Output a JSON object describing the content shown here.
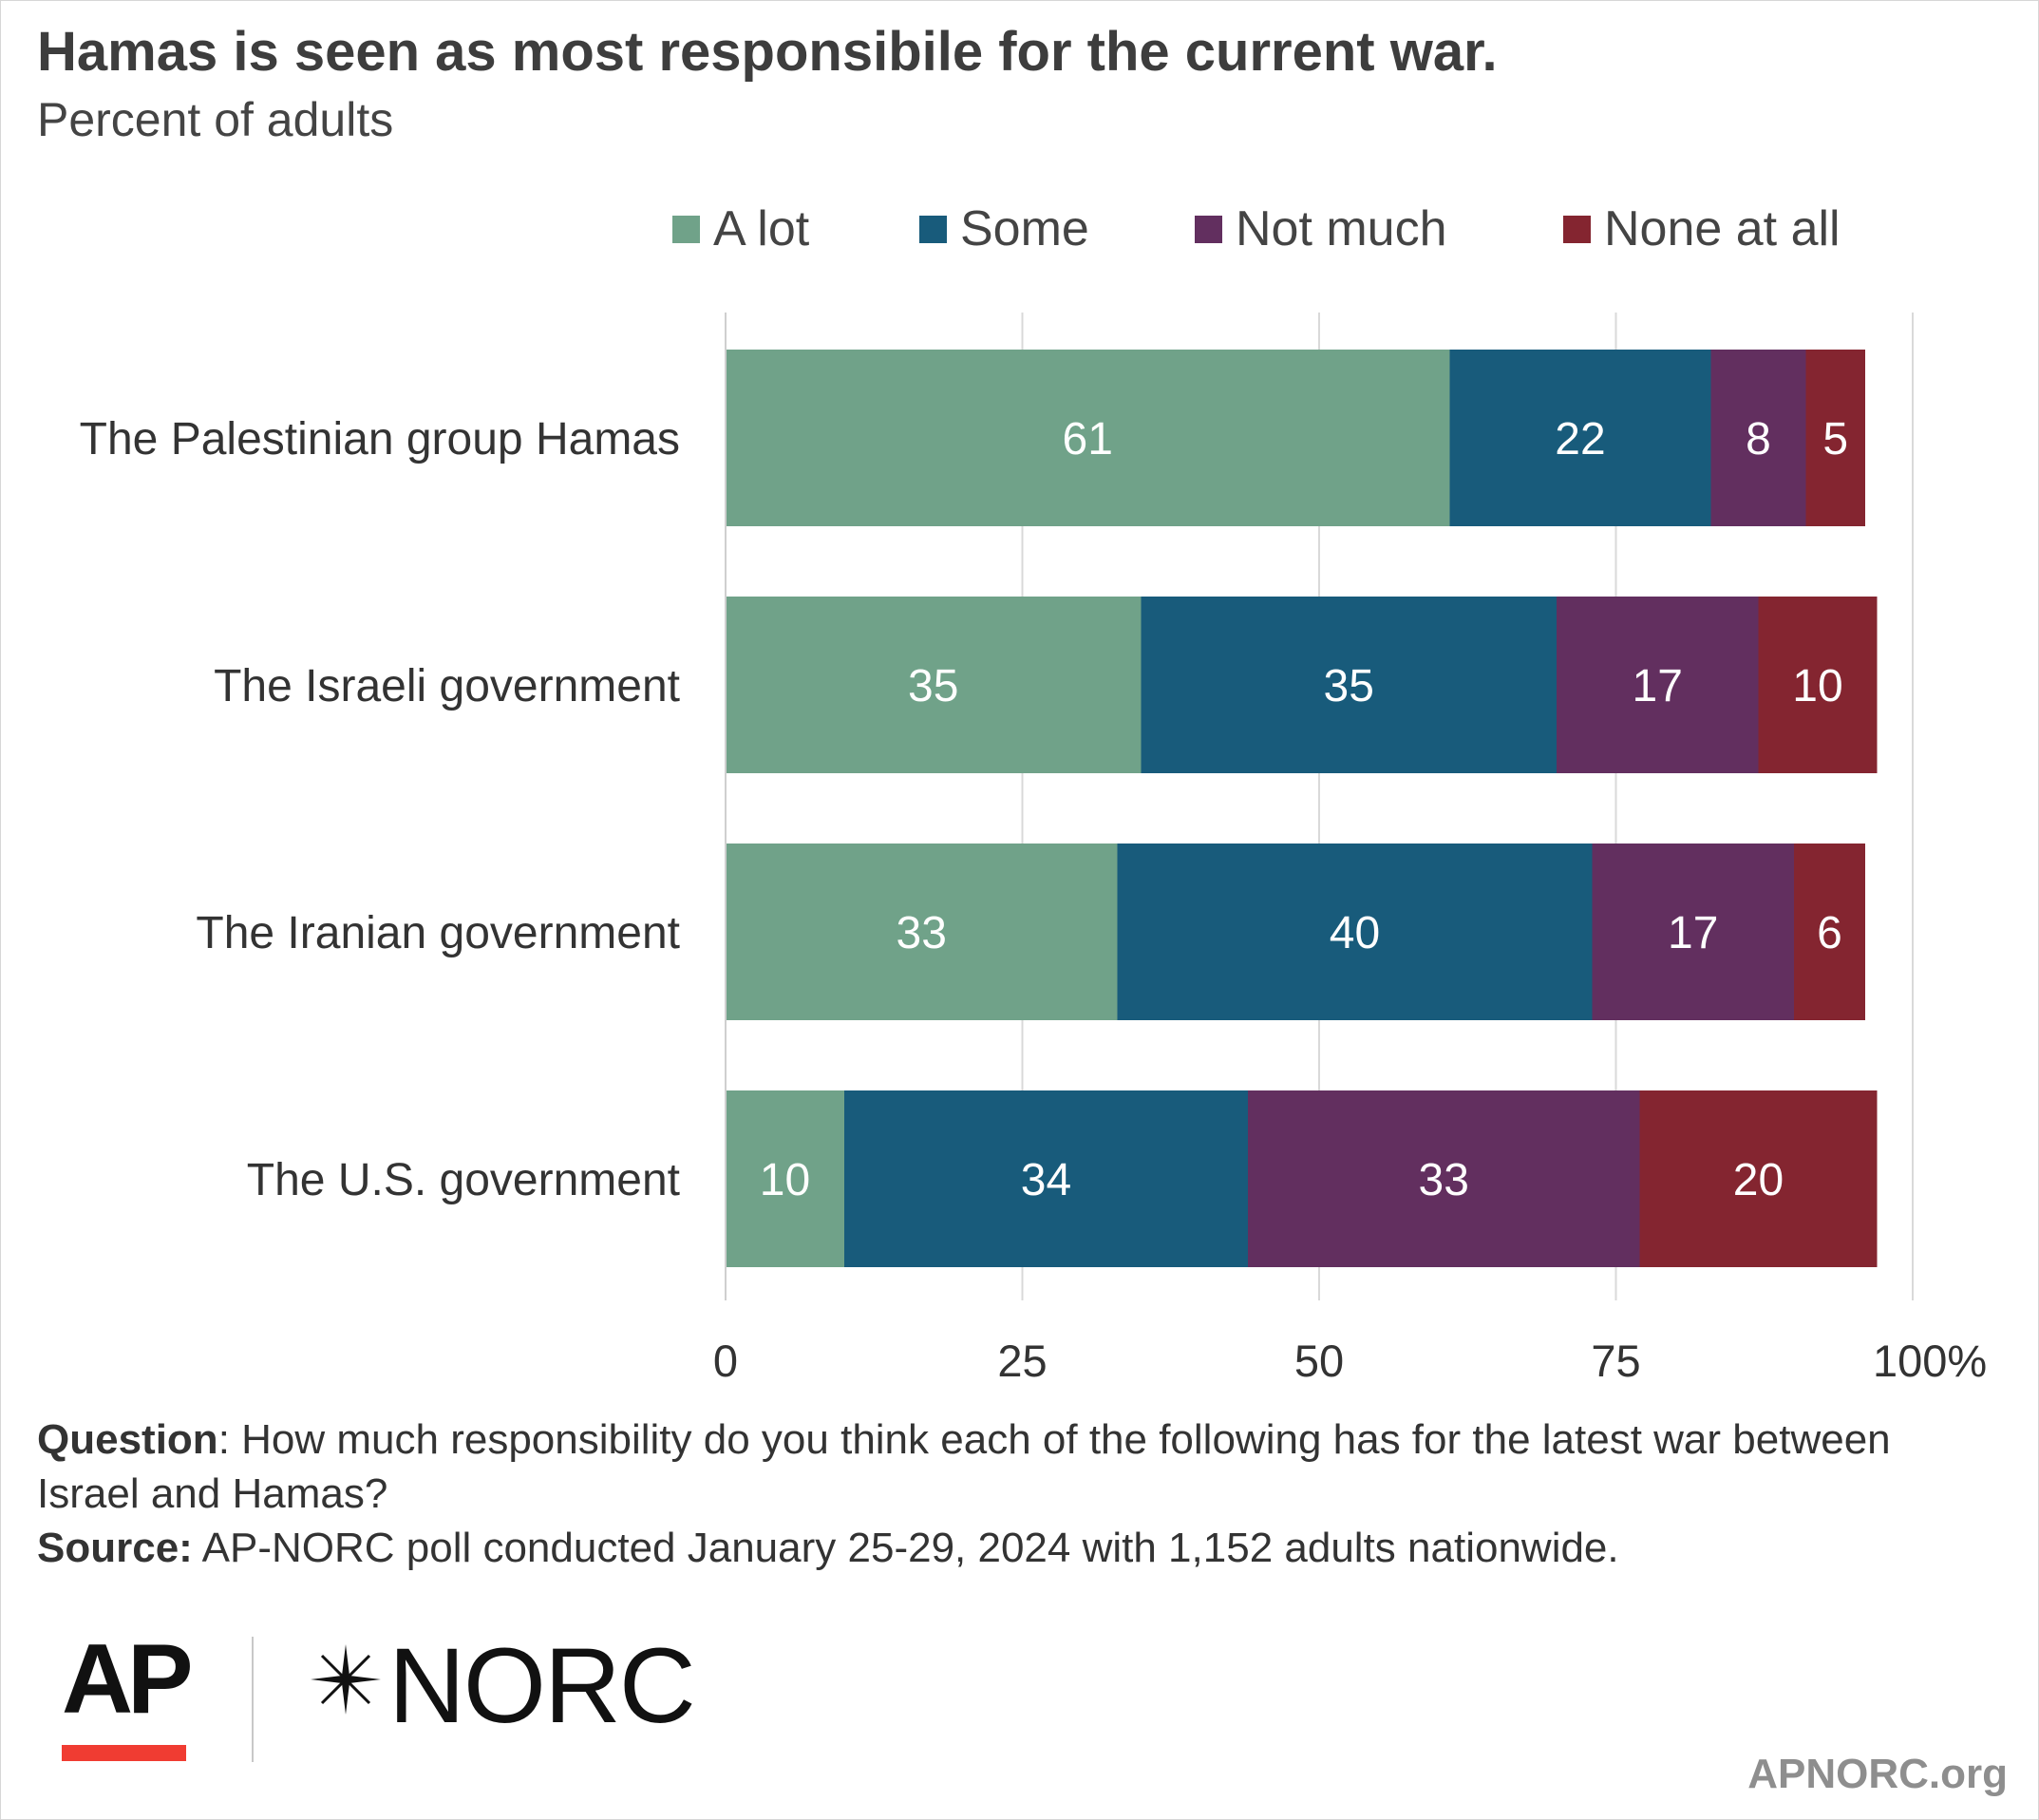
{
  "chart_data": {
    "type": "bar",
    "orientation": "horizontal",
    "stacked": true,
    "title": "Hamas is seen as most responsibile for the current war.",
    "subtitle": "Percent of adults",
    "categories": [
      "The Palestinian group Hamas",
      "The Israeli government",
      "The Iranian government",
      "The U.S. government"
    ],
    "series": [
      {
        "name": "A lot",
        "color": "#70a289",
        "values": [
          61,
          35,
          33,
          10
        ]
      },
      {
        "name": "Some",
        "color": "#185b7b",
        "values": [
          22,
          35,
          40,
          34
        ]
      },
      {
        "name": "Not much",
        "color": "#622f5f",
        "values": [
          8,
          17,
          17,
          33
        ]
      },
      {
        "name": "None at all",
        "color": "#842530",
        "values": [
          5,
          10,
          6,
          20
        ]
      }
    ],
    "xlim": [
      0,
      100
    ],
    "xticks": [
      "0",
      "25",
      "50",
      "75",
      "100%"
    ],
    "grid": true,
    "legend_position": "top"
  },
  "footnote": {
    "question_label": "Question",
    "question_text": ": How much responsibility do you think each of the following has for the latest war between Israel and Hamas?",
    "source_label": "Source:",
    "source_text": " AP-NORC poll conducted January 25-29, 2024 with 1,152 adults nationwide."
  },
  "logos": {
    "ap": "AP",
    "norc": "NORC"
  },
  "site": "APNORC.org"
}
